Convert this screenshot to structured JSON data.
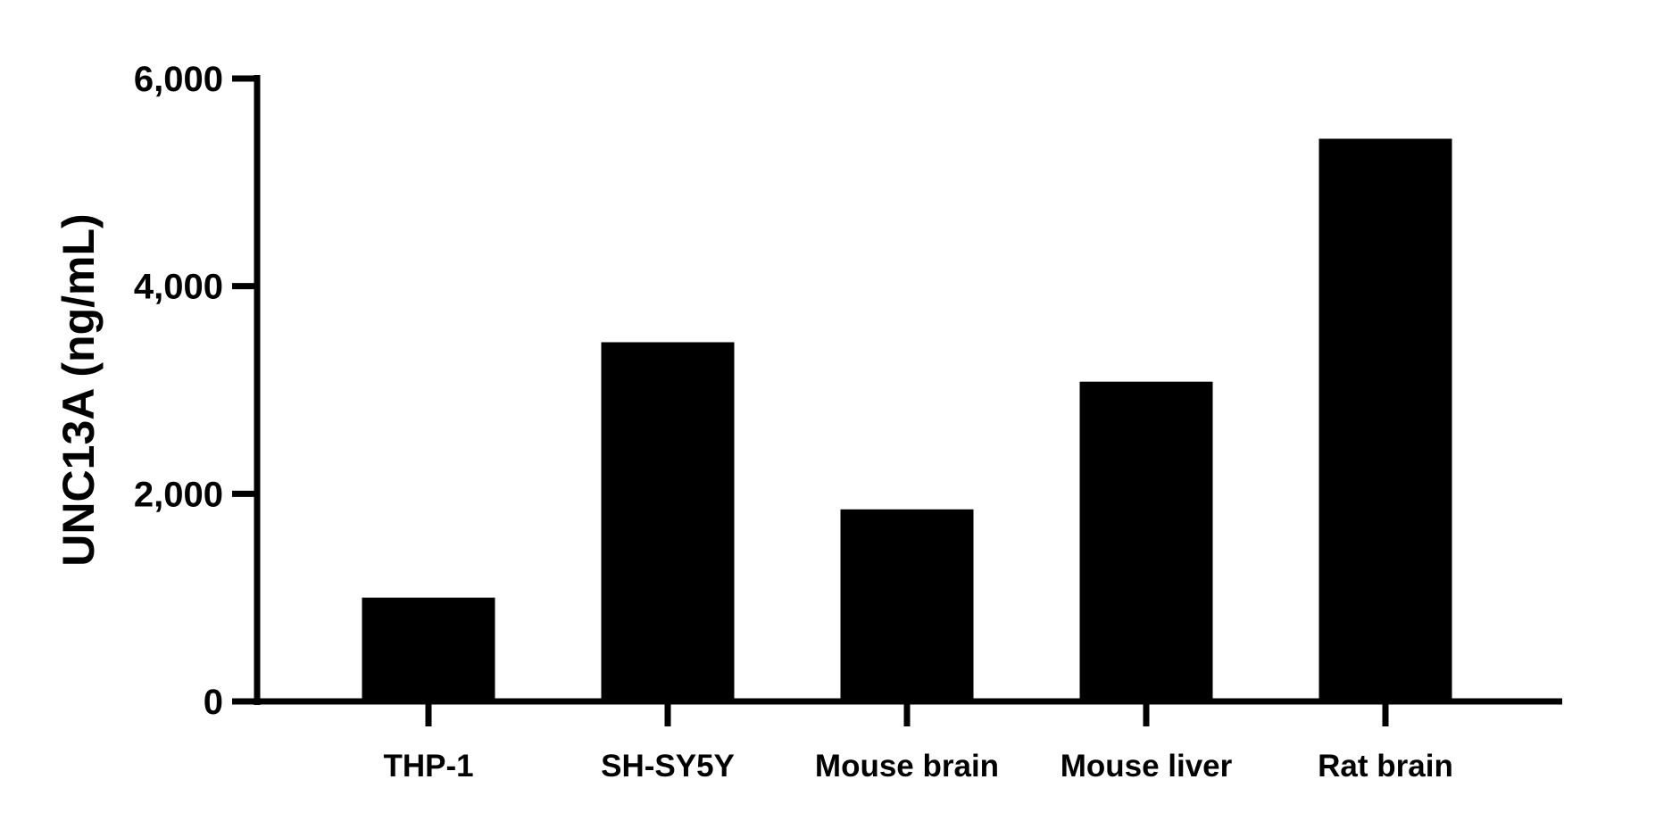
{
  "chart_data": {
    "type": "bar",
    "title": "",
    "xlabel": "",
    "ylabel": "UNC13A (ng/mL)",
    "categories": [
      "THP-1",
      "SH-SY5Y",
      "Mouse brain",
      "Mouse liver",
      "Rat brain"
    ],
    "values": [
      1000,
      3460,
      1850,
      3080,
      5420
    ],
    "ylim": [
      0,
      6000
    ],
    "yticks": [
      0,
      2000,
      4000,
      6000
    ],
    "ytick_labels": [
      "0",
      "2,000",
      "4,000",
      "6,000"
    ],
    "grid": false,
    "bar_color": "#000000"
  }
}
